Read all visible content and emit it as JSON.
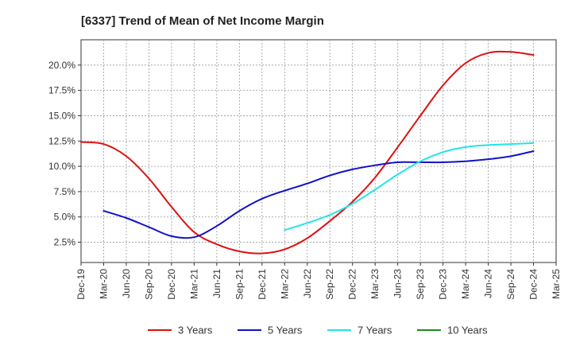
{
  "chart_data": {
    "type": "line",
    "title": "[6337]  Trend of Mean of Net Income Margin",
    "xlabel": "",
    "ylabel": "",
    "x": [
      "Dec-19",
      "Mar-20",
      "Jun-20",
      "Sep-20",
      "Dec-20",
      "Mar-21",
      "Jun-21",
      "Sep-21",
      "Dec-21",
      "Mar-22",
      "Jun-22",
      "Sep-22",
      "Dec-22",
      "Mar-23",
      "Jun-23",
      "Sep-23",
      "Dec-23",
      "Mar-24",
      "Jun-24",
      "Sep-24",
      "Dec-24",
      "Mar-25"
    ],
    "ylim": [
      0.5,
      22.5
    ],
    "yticks": [
      2.5,
      5.0,
      7.5,
      10.0,
      12.5,
      15.0,
      17.5,
      20.0
    ],
    "ytick_labels": [
      "2.5%",
      "5.0%",
      "7.5%",
      "10.0%",
      "12.5%",
      "15.0%",
      "17.5%",
      "20.0%"
    ],
    "grid": true,
    "legend_position": "bottom",
    "series": [
      {
        "name": "3 Years",
        "color": "#dd1111",
        "values": [
          12.4,
          12.2,
          11.0,
          8.8,
          6.0,
          3.5,
          2.3,
          1.6,
          1.4,
          1.8,
          2.9,
          4.6,
          6.5,
          8.9,
          11.9,
          15.0,
          18.0,
          20.2,
          21.2,
          21.3,
          21.0,
          null
        ]
      },
      {
        "name": "5 Years",
        "color": "#1111cc",
        "values": [
          null,
          5.6,
          4.9,
          4.0,
          3.1,
          3.0,
          4.1,
          5.6,
          6.8,
          7.6,
          8.3,
          9.1,
          9.7,
          10.1,
          10.4,
          10.4,
          10.4,
          10.5,
          10.7,
          11.0,
          11.5,
          null
        ]
      },
      {
        "name": "7 Years",
        "color": "#22e5e5",
        "values": [
          null,
          null,
          null,
          null,
          null,
          null,
          null,
          null,
          null,
          3.7,
          4.4,
          5.2,
          6.3,
          7.7,
          9.2,
          10.5,
          11.4,
          11.9,
          12.1,
          12.2,
          12.3,
          null
        ]
      },
      {
        "name": "10 Years",
        "color": "#228822",
        "values": [
          null,
          null,
          null,
          null,
          null,
          null,
          null,
          null,
          null,
          null,
          null,
          null,
          null,
          null,
          null,
          null,
          null,
          null,
          null,
          null,
          null,
          null
        ]
      }
    ]
  }
}
